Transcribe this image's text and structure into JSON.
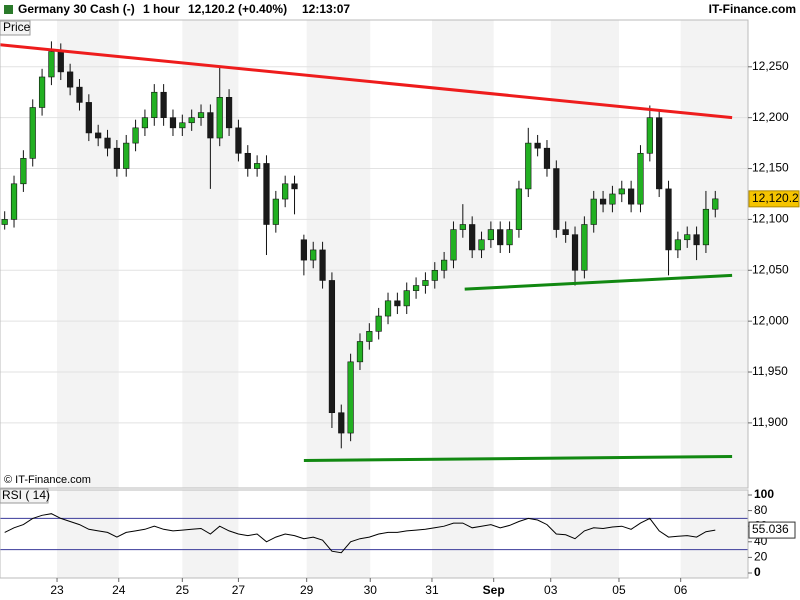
{
  "header": {
    "title": "Germany 30 Cash (-)",
    "interval": "1 hour",
    "quote": "12,120.2 (+0.40%)",
    "time": "12:13:07",
    "brand": "IT-Finance.com",
    "panel_label": "Price",
    "copyright": "© IT-Finance.com"
  },
  "chart_data": [
    {
      "type": "candlestick",
      "open": [
        12095,
        12100,
        12135,
        12160,
        12210,
        12240,
        12265,
        12245,
        12230,
        12215,
        12185,
        12180,
        12170,
        12150,
        12175,
        12190,
        12200,
        12225,
        12200,
        12190,
        12195,
        12200,
        12205,
        12180,
        12220,
        12190,
        12165,
        12150,
        12155,
        12095,
        12120,
        12135,
        12080,
        12060,
        12070,
        12040,
        11910,
        11890,
        11960,
        11980,
        11990,
        12005,
        12020,
        12015,
        12030,
        12035,
        12040,
        12050,
        12060,
        12090,
        12095,
        12070,
        12080,
        12090,
        12075,
        12090,
        12130,
        12175,
        12170,
        12150,
        12090,
        12085,
        12050,
        12095,
        12120,
        12115,
        12125,
        12130,
        12115,
        12165,
        12200,
        12130,
        12070,
        12080,
        12085,
        12075,
        12110
      ],
      "high": [
        12108,
        12143,
        12168,
        12218,
        12248,
        12275,
        12273,
        12253,
        12238,
        12223,
        12193,
        12188,
        12178,
        12183,
        12198,
        12208,
        12233,
        12233,
        12208,
        12203,
        12208,
        12213,
        12213,
        12250,
        12228,
        12198,
        12173,
        12163,
        12163,
        12128,
        12143,
        12143,
        12085,
        12078,
        12078,
        12048,
        11918,
        11968,
        11988,
        11998,
        12013,
        12028,
        12028,
        12038,
        12043,
        12048,
        12058,
        12068,
        12098,
        12115,
        12103,
        12088,
        12098,
        12098,
        12098,
        12138,
        12190,
        12183,
        12178,
        12158,
        12098,
        12093,
        12103,
        12128,
        12128,
        12133,
        12138,
        12138,
        12173,
        12212,
        12208,
        12138,
        12088,
        12093,
        12093,
        12128,
        12128
      ],
      "low": [
        12090,
        12092,
        12127,
        12152,
        12202,
        12232,
        12237,
        12222,
        12207,
        12177,
        12172,
        12162,
        12142,
        12142,
        12167,
        12182,
        12192,
        12192,
        12182,
        12182,
        12187,
        12192,
        12130,
        12172,
        12182,
        12157,
        12142,
        12142,
        12065,
        12087,
        12112,
        12105,
        12045,
        12052,
        12032,
        11895,
        11875,
        11882,
        11952,
        11972,
        11982,
        11997,
        12007,
        12007,
        12022,
        12027,
        12032,
        12042,
        12052,
        12082,
        12062,
        12062,
        12072,
        12067,
        12067,
        12082,
        12122,
        12162,
        12142,
        12082,
        12077,
        12035,
        12042,
        12087,
        12107,
        12107,
        12117,
        12107,
        12107,
        12157,
        12122,
        12045,
        12062,
        12072,
        12060,
        12067,
        12102
      ],
      "close": [
        12100,
        12135,
        12160,
        12210,
        12240,
        12265,
        12245,
        12230,
        12215,
        12185,
        12180,
        12170,
        12150,
        12175,
        12190,
        12200,
        12225,
        12200,
        12190,
        12195,
        12200,
        12205,
        12180,
        12220,
        12190,
        12165,
        12150,
        12155,
        12095,
        12120,
        12135,
        12130,
        12060,
        12070,
        12040,
        11910,
        11890,
        11960,
        11980,
        11990,
        12005,
        12020,
        12015,
        12030,
        12035,
        12040,
        12050,
        12060,
        12090,
        12095,
        12070,
        12080,
        12090,
        12075,
        12090,
        12130,
        12175,
        12170,
        12150,
        12090,
        12085,
        12050,
        12095,
        12120,
        12115,
        12125,
        12130,
        12115,
        12165,
        12200,
        12130,
        12070,
        12080,
        12085,
        12075,
        12110,
        12120.2
      ],
      "last_label": "12,120.2",
      "up_color": "#22b022",
      "down_color": "#1a1a1a",
      "label_color": "#f5c400",
      "xlim": [
        -0.5,
        79.5
      ],
      "xticks": [
        {
          "value": 5.6,
          "label": "23"
        },
        {
          "value": 12.2,
          "label": "24"
        },
        {
          "value": 19,
          "label": "25"
        },
        {
          "value": 25,
          "label": "27"
        },
        {
          "value": 32.3,
          "label": "29"
        },
        {
          "value": 39.1,
          "label": "30"
        },
        {
          "value": 45.7,
          "label": "31"
        },
        {
          "value": 52.3,
          "label": "Sep"
        },
        {
          "value": 58.4,
          "label": "03"
        },
        {
          "value": 65.7,
          "label": "05"
        },
        {
          "value": 72.3,
          "label": "06"
        }
      ],
      "ylim": [
        11836,
        12296
      ],
      "yticks": [
        {
          "value": 11900,
          "label": "11,900"
        },
        {
          "value": 11950,
          "label": "11,950"
        },
        {
          "value": 12000,
          "label": "12,000"
        },
        {
          "value": 12050,
          "label": "12,050"
        },
        {
          "value": 12100,
          "label": "12,100"
        },
        {
          "value": 12150,
          "label": "12,150"
        },
        {
          "value": 12200,
          "label": "12,200"
        },
        {
          "value": 12250,
          "label": "12,250"
        }
      ],
      "grid": true,
      "trend_lines": [
        {
          "color": "#ee1c1c",
          "x": [
            -0.5,
            77.8
          ],
          "y": [
            12271.7,
            12200
          ]
        },
        {
          "color": "#118811",
          "x": [
            49.2,
            77.8
          ],
          "y": [
            12031.5,
            12045
          ]
        },
        {
          "color": "#118811",
          "x": [
            32,
            77.8
          ],
          "y": [
            11863,
            11867
          ]
        }
      ]
    },
    {
      "type": "line",
      "title": "RSI ( 14)",
      "values": [
        52,
        58,
        62,
        70,
        74,
        76,
        70,
        66,
        62,
        56,
        54,
        52,
        46,
        52,
        54,
        56,
        60,
        56,
        54,
        55,
        56,
        57,
        50,
        60,
        54,
        50,
        48,
        50,
        40,
        46,
        50,
        48,
        44,
        46,
        42,
        28,
        26,
        40,
        44,
        46,
        50,
        52,
        52,
        54,
        55,
        56,
        58,
        60,
        64,
        64,
        58,
        60,
        62,
        58,
        61,
        66,
        70,
        68,
        62,
        50,
        49,
        44,
        54,
        58,
        57,
        59,
        60,
        56,
        64,
        70,
        54,
        46,
        47,
        48,
        46,
        53,
        55.036
      ],
      "color": "#000000",
      "levels": [
        70,
        30
      ],
      "level_color": "#3a3a9a",
      "ylim": [
        -6.4,
        106.4
      ],
      "yticks": [
        0,
        20,
        40,
        60,
        80,
        100
      ]
    }
  ]
}
